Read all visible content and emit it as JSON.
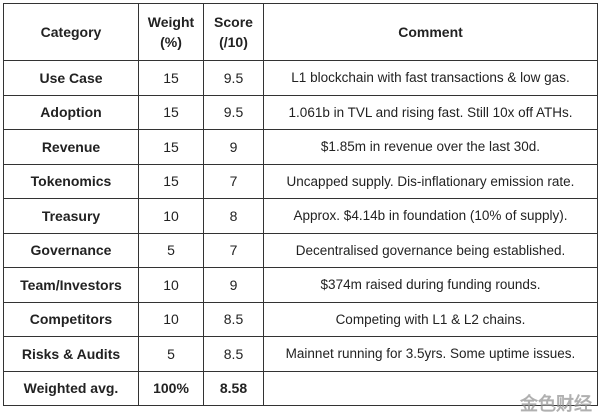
{
  "table": {
    "header": [
      "Category",
      "Weight (%)",
      "Score (/10)",
      "Comment"
    ],
    "rows": [
      [
        "Use Case",
        "15",
        "9.5",
        "L1 blockchain with fast transactions & low gas."
      ],
      [
        "Adoption",
        "15",
        "9.5",
        "1.061b in TVL and rising fast. Still 10x off ATHs."
      ],
      [
        "Revenue",
        "15",
        "9",
        "$1.85m in revenue over the last 30d."
      ],
      [
        "Tokenomics",
        "15",
        "7",
        "Uncapped supply. Dis-inflationary emission rate."
      ],
      [
        "Treasury",
        "10",
        "8",
        "Approx. $4.14b in foundation (10% of supply)."
      ],
      [
        "Governance",
        "5",
        "7",
        "Decentralised governance being established."
      ],
      [
        "Team/Investors",
        "10",
        "9",
        "$374m raised during funding rounds."
      ],
      [
        "Competitors",
        "10",
        "8.5",
        "Competing with L1 & L2 chains."
      ],
      [
        "Risks & Audits",
        "5",
        "8.5",
        "Mainnet running for 3.5yrs. Some uptime issues."
      ]
    ],
    "footer": [
      "Weighted avg.",
      "100%",
      "8.58"
    ]
  },
  "watermark": "金色财经"
}
